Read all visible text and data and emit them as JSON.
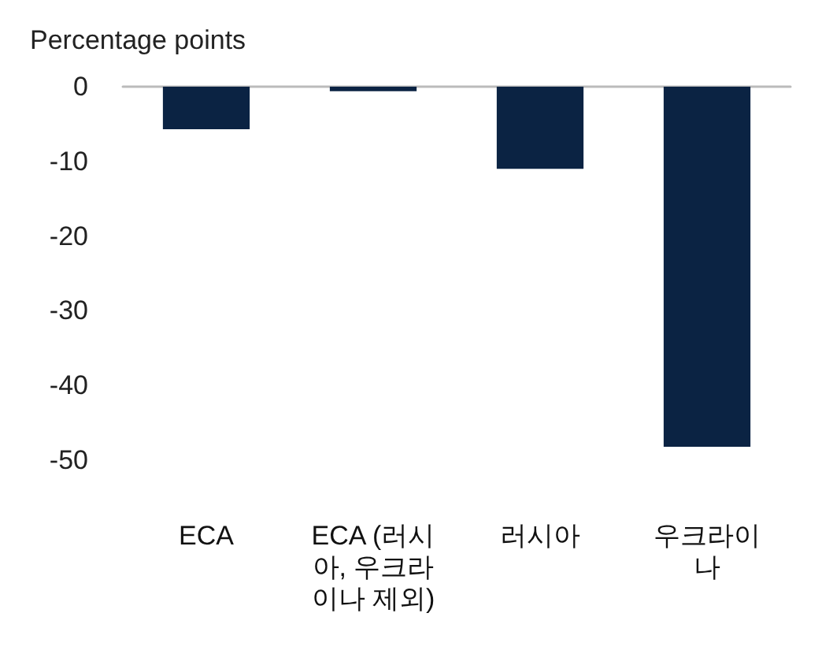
{
  "chart_data": {
    "type": "bar",
    "ylabel": "Percentage points",
    "categories": [
      "ECA",
      "ECA (러시아, 우크라이나 제외)",
      "러시아",
      "우크라이나"
    ],
    "values": [
      -5.7,
      -0.6,
      -11,
      -48.2
    ],
    "color": "#0b2343",
    "ylim": [
      -50,
      0
    ],
    "yticks": [
      -50,
      -40,
      -30,
      -20,
      -10,
      0
    ],
    "grid": false
  }
}
